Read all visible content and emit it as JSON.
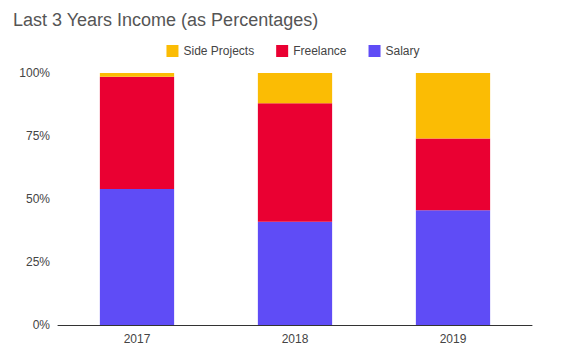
{
  "chart_data": {
    "type": "bar",
    "title": "Last 3 Years Income (as Percentages)",
    "categories": [
      "2017",
      "2018",
      "2019"
    ],
    "series": [
      {
        "name": "Salary",
        "color": "#5f4cf6",
        "values": [
          54,
          41,
          45.5
        ]
      },
      {
        "name": "Freelance",
        "color": "#ea0032",
        "values": [
          44.5,
          47,
          28.5
        ]
      },
      {
        "name": "Side Projects",
        "color": "#fbbc04",
        "values": [
          1.5,
          12,
          26
        ]
      }
    ],
    "stacked": true,
    "ylim": [
      0,
      100
    ],
    "yticks": [
      {
        "value": 0,
        "label": "0%"
      },
      {
        "value": 25,
        "label": "25%"
      },
      {
        "value": 50,
        "label": "50%"
      },
      {
        "value": 75,
        "label": "75%"
      },
      {
        "value": 100,
        "label": "100%"
      }
    ],
    "grid": false,
    "legend": "top"
  }
}
